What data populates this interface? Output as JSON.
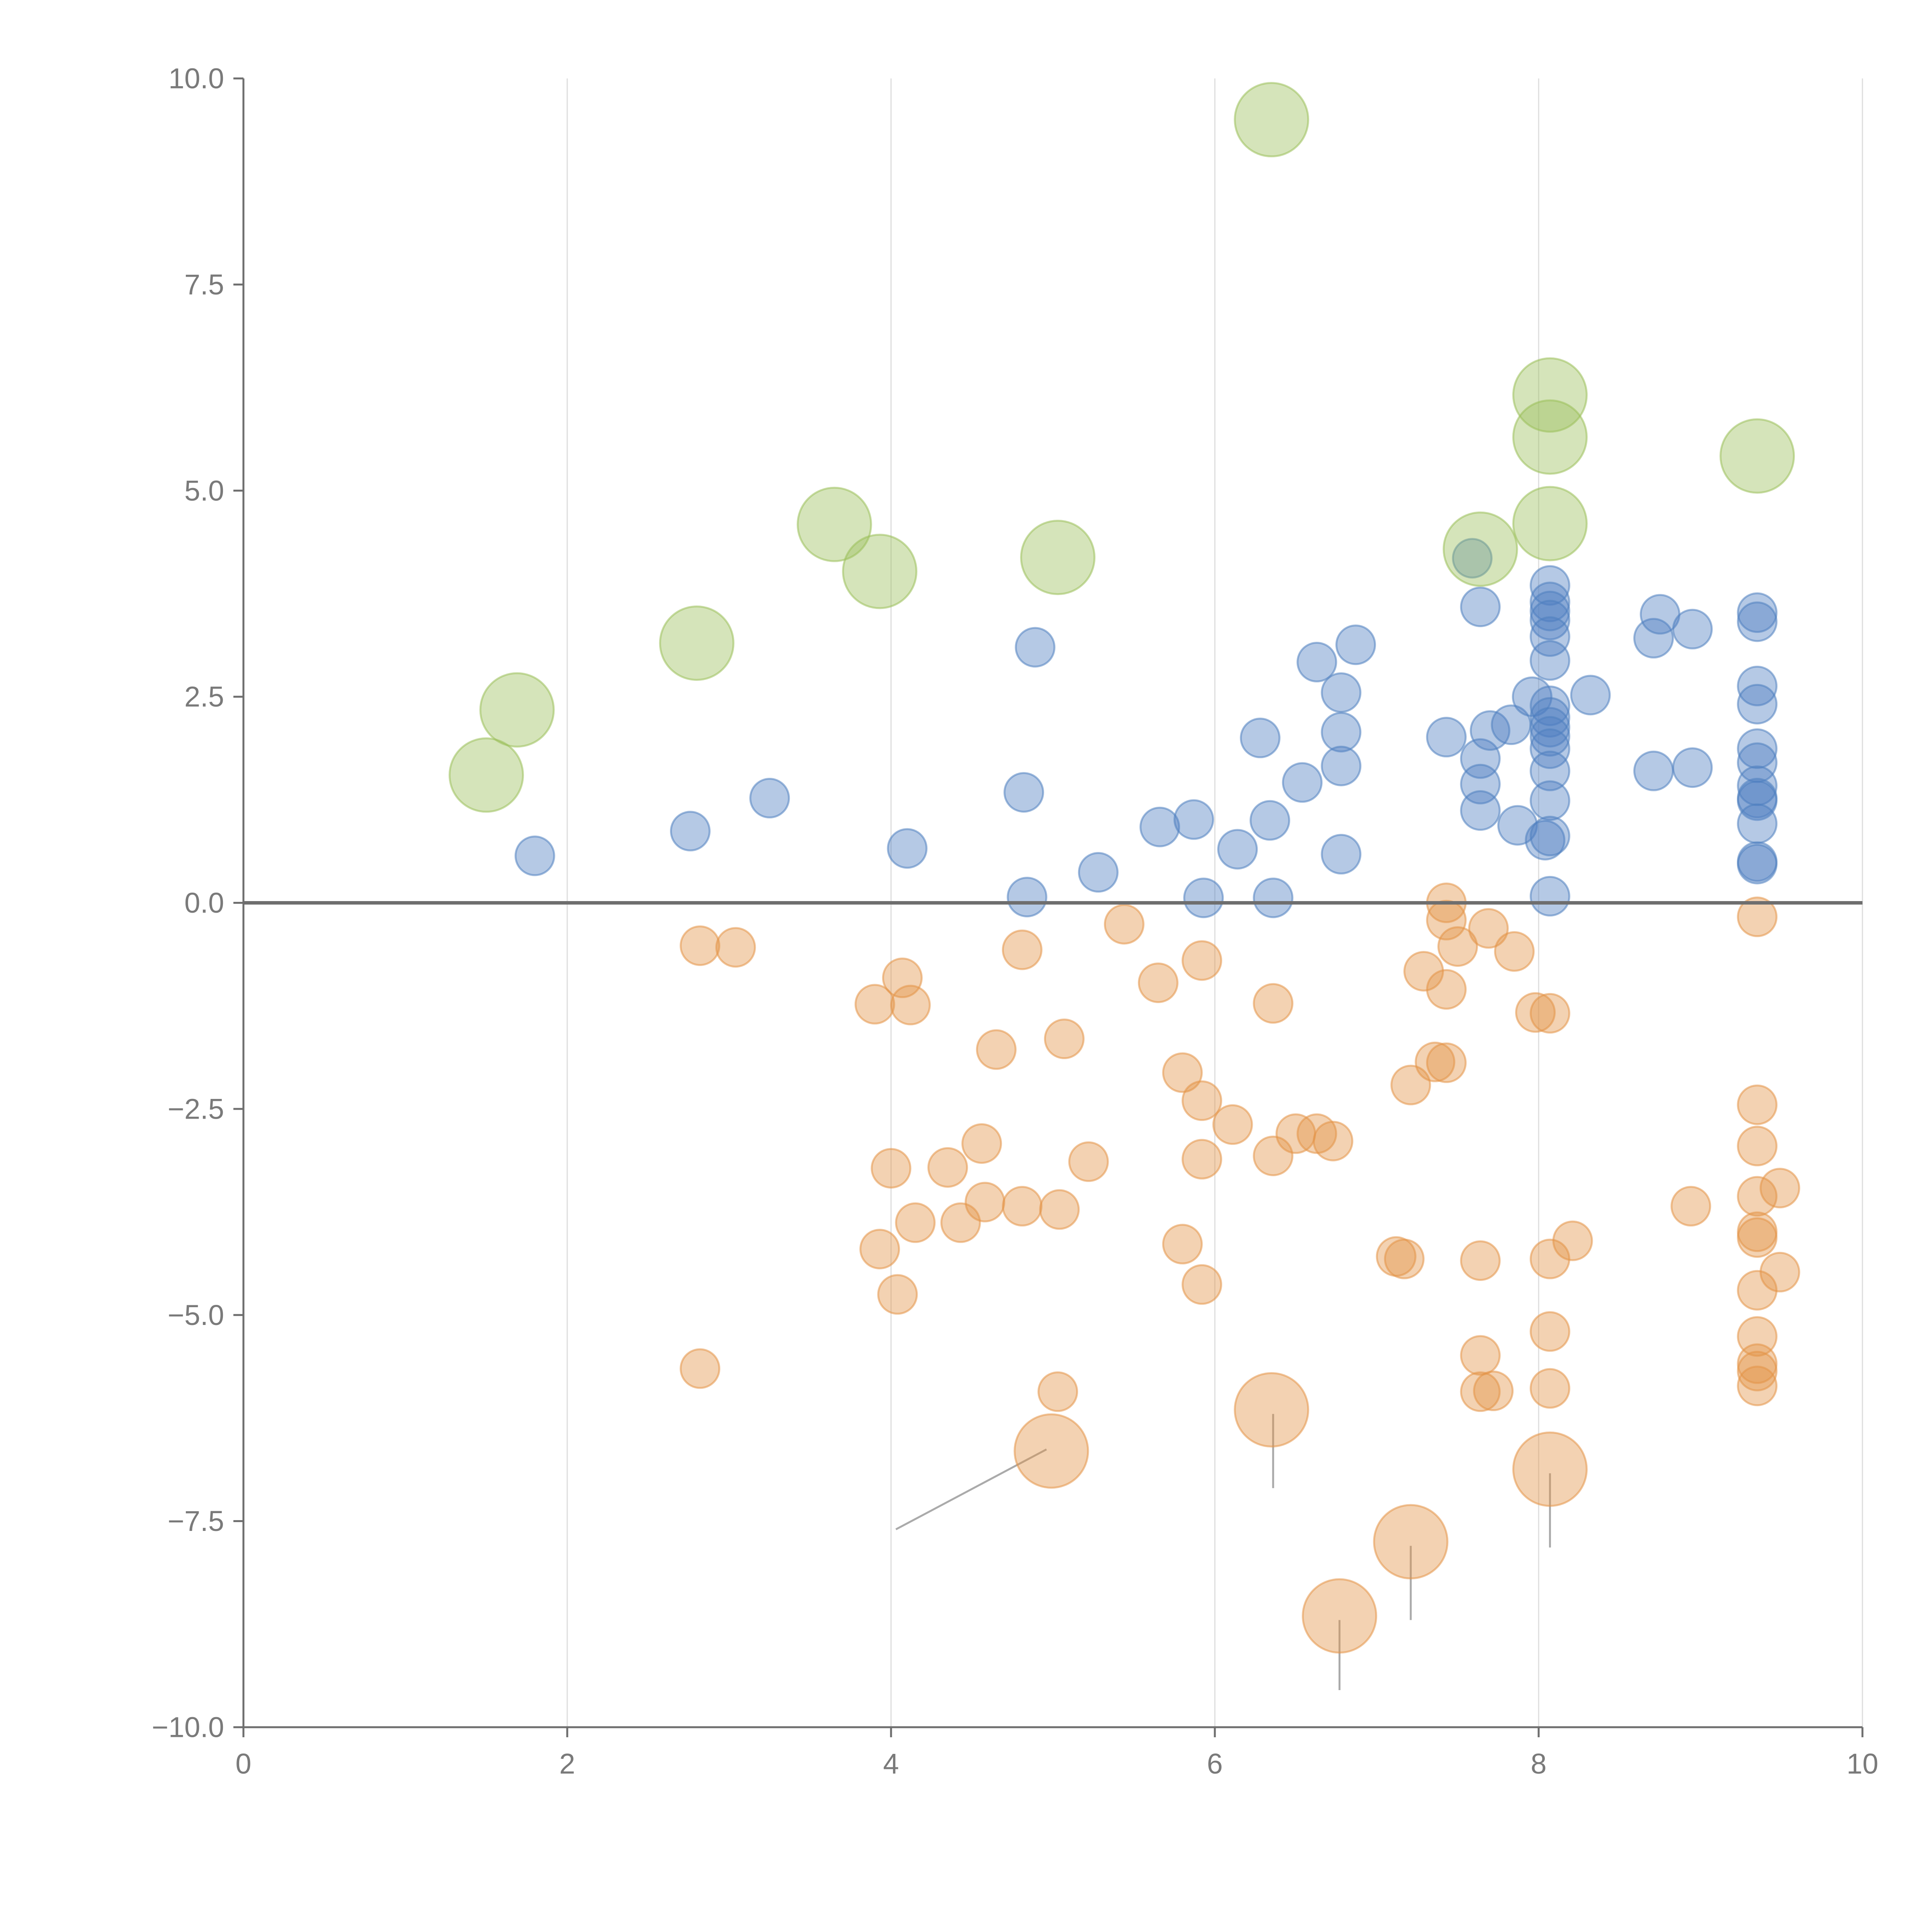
{
  "chart_data": {
    "type": "scatter",
    "title": "",
    "xlabel": "",
    "ylabel": "",
    "xlim": [
      0,
      10
    ],
    "ylim": [
      -10,
      10
    ],
    "x_ticks": [
      "0",
      "2",
      "4",
      "6",
      "8",
      "10"
    ],
    "y_ticks": [
      "10.0",
      "7.5",
      "5.0",
      "2.5",
      "0.0",
      "−2.5",
      "−5.0",
      "−7.5",
      "−10.0"
    ],
    "x_tick_values": [
      0,
      2,
      4,
      6,
      8,
      10
    ],
    "y_tick_values": [
      10,
      7.5,
      5,
      2.5,
      0,
      -2.5,
      -5,
      -7.5,
      -10
    ],
    "grid": "vertical lines at x ticks",
    "baseline_y": 0,
    "colors": {
      "blue": "#4f7fc0",
      "orange": "#e39447",
      "green": "#9bbf5a",
      "axis": "#6e6e6e",
      "grid": "#dddddd",
      "connector": "#aaaaaa"
    },
    "series": [
      {
        "color": "#4f7fc0",
        "size": "medium",
        "points": [
          [
            1.8,
            0.57
          ],
          [
            2.76,
            0.87
          ],
          [
            3.25,
            1.27
          ],
          [
            4.1,
            0.66
          ],
          [
            4.82,
            1.34
          ],
          [
            4.89,
            3.1
          ],
          [
            4.84,
            0.07
          ],
          [
            5.28,
            0.37
          ],
          [
            5.66,
            0.92
          ],
          [
            5.87,
            1.01
          ],
          [
            5.93,
            0.06
          ],
          [
            6.14,
            0.65
          ],
          [
            6.28,
            2.0
          ],
          [
            6.34,
            1.0
          ],
          [
            6.36,
            0.06
          ],
          [
            6.54,
            1.46
          ],
          [
            6.63,
            2.92
          ],
          [
            6.78,
            2.55
          ],
          [
            6.78,
            2.07
          ],
          [
            6.78,
            1.66
          ],
          [
            6.78,
            0.59
          ],
          [
            6.87,
            3.13
          ],
          [
            7.43,
            2.01
          ],
          [
            7.59,
            4.18
          ],
          [
            7.64,
            3.59
          ],
          [
            7.64,
            1.75
          ],
          [
            7.64,
            1.44
          ],
          [
            7.64,
            1.12
          ],
          [
            7.7,
            2.09
          ],
          [
            7.83,
            2.16
          ],
          [
            7.87,
            0.94
          ],
          [
            7.96,
            2.5
          ],
          [
            8.04,
            0.76
          ],
          [
            8.07,
            3.85
          ],
          [
            8.07,
            3.65
          ],
          [
            8.07,
            3.54
          ],
          [
            8.07,
            3.43
          ],
          [
            8.07,
            3.23
          ],
          [
            8.07,
            2.94
          ],
          [
            8.07,
            2.39
          ],
          [
            8.07,
            2.25
          ],
          [
            8.07,
            2.13
          ],
          [
            8.07,
            2.02
          ],
          [
            8.07,
            1.87
          ],
          [
            8.07,
            1.6
          ],
          [
            8.07,
            1.24
          ],
          [
            8.07,
            0.81
          ],
          [
            8.07,
            0.08
          ],
          [
            8.32,
            2.52
          ],
          [
            8.71,
            3.21
          ],
          [
            8.71,
            1.6
          ],
          [
            8.75,
            3.5
          ],
          [
            8.95,
            3.32
          ],
          [
            8.95,
            1.64
          ],
          [
            9.35,
            3.52
          ],
          [
            9.35,
            3.41
          ],
          [
            9.35,
            2.63
          ],
          [
            9.35,
            2.41
          ],
          [
            9.35,
            1.87
          ],
          [
            9.35,
            1.7
          ],
          [
            9.35,
            1.42
          ],
          [
            9.35,
            1.27
          ],
          [
            9.35,
            1.24
          ],
          [
            9.35,
            0.96
          ],
          [
            9.35,
            0.5
          ],
          [
            9.35,
            0.47
          ]
        ]
      },
      {
        "color": "#e39447",
        "size": "medium",
        "points": [
          [
            2.82,
            -0.52
          ],
          [
            3.04,
            -0.54
          ],
          [
            2.82,
            -5.65
          ],
          [
            3.9,
            -1.23
          ],
          [
            4.07,
            -0.91
          ],
          [
            4.12,
            -1.24
          ],
          [
            3.93,
            -4.2
          ],
          [
            4.0,
            -3.22
          ],
          [
            4.04,
            -4.75
          ],
          [
            4.15,
            -3.88
          ],
          [
            4.35,
            -3.21
          ],
          [
            4.43,
            -3.88
          ],
          [
            4.56,
            -2.92
          ],
          [
            4.58,
            -3.63
          ],
          [
            4.65,
            -1.78
          ],
          [
            4.81,
            -0.57
          ],
          [
            4.81,
            -3.68
          ],
          [
            5.03,
            -5.93
          ],
          [
            5.04,
            -3.72
          ],
          [
            5.07,
            -1.65
          ],
          [
            5.22,
            -3.14
          ],
          [
            5.44,
            -0.26
          ],
          [
            5.65,
            -0.97
          ],
          [
            5.8,
            -2.06
          ],
          [
            5.8,
            -4.14
          ],
          [
            5.92,
            -0.7
          ],
          [
            5.92,
            -2.4
          ],
          [
            5.92,
            -3.11
          ],
          [
            5.92,
            -4.63
          ],
          [
            6.11,
            -2.69
          ],
          [
            6.36,
            -1.22
          ],
          [
            6.36,
            -3.07
          ],
          [
            6.5,
            -2.8
          ],
          [
            6.63,
            -2.8
          ],
          [
            6.73,
            -2.89
          ],
          [
            7.12,
            -4.29
          ],
          [
            7.17,
            -4.32
          ],
          [
            7.21,
            -2.21
          ],
          [
            7.29,
            -0.83
          ],
          [
            7.36,
            -1.93
          ],
          [
            7.43,
            -1.94
          ],
          [
            7.43,
            -1.05
          ],
          [
            7.43,
            -0.21
          ],
          [
            7.43,
            0.0
          ],
          [
            7.5,
            -0.53
          ],
          [
            7.64,
            -4.34
          ],
          [
            7.64,
            -5.49
          ],
          [
            7.64,
            -5.93
          ],
          [
            7.72,
            -5.92
          ],
          [
            7.69,
            -0.31
          ],
          [
            7.85,
            -0.59
          ],
          [
            7.98,
            -1.33
          ],
          [
            8.07,
            -1.34
          ],
          [
            8.07,
            -4.32
          ],
          [
            8.07,
            -5.2
          ],
          [
            8.07,
            -5.89
          ],
          [
            8.21,
            -4.1
          ],
          [
            8.94,
            -3.68
          ],
          [
            9.35,
            -0.17
          ],
          [
            9.35,
            -2.45
          ],
          [
            9.35,
            -2.95
          ],
          [
            9.35,
            -3.56
          ],
          [
            9.35,
            -3.99
          ],
          [
            9.35,
            -4.06
          ],
          [
            9.35,
            -4.7
          ],
          [
            9.35,
            -5.26
          ],
          [
            9.35,
            -5.59
          ],
          [
            9.35,
            -5.68
          ],
          [
            9.35,
            -5.86
          ],
          [
            9.49,
            -3.46
          ],
          [
            9.49,
            -4.48
          ]
        ]
      },
      {
        "color": "#e39447",
        "size": "large",
        "points": [
          [
            4.99,
            -6.65
          ],
          [
            6.35,
            -6.15
          ],
          [
            6.77,
            -8.65
          ],
          [
            7.21,
            -7.75
          ],
          [
            8.07,
            -6.87
          ]
        ]
      },
      {
        "color": "#9bbf5a",
        "size": "large",
        "points": [
          [
            1.5,
            1.55
          ],
          [
            1.69,
            2.34
          ],
          [
            2.8,
            3.15
          ],
          [
            3.65,
            4.59
          ],
          [
            3.93,
            4.02
          ],
          [
            5.03,
            4.19
          ],
          [
            6.35,
            9.5
          ],
          [
            7.64,
            4.29
          ],
          [
            8.07,
            6.16
          ],
          [
            8.07,
            5.65
          ],
          [
            8.07,
            4.6
          ],
          [
            9.35,
            5.42
          ]
        ]
      }
    ],
    "annotation_connectors": [
      {
        "from": [
          4.96,
          -6.63
        ],
        "to": [
          4.03,
          -7.6
        ]
      },
      {
        "from": [
          6.36,
          -6.2
        ],
        "to": [
          6.36,
          -7.1
        ]
      },
      {
        "from": [
          6.77,
          -8.7
        ],
        "to": [
          6.77,
          -9.55
        ]
      },
      {
        "from": [
          7.21,
          -7.8
        ],
        "to": [
          7.21,
          -8.7
        ]
      },
      {
        "from": [
          8.07,
          -6.92
        ],
        "to": [
          8.07,
          -7.82
        ]
      }
    ]
  }
}
